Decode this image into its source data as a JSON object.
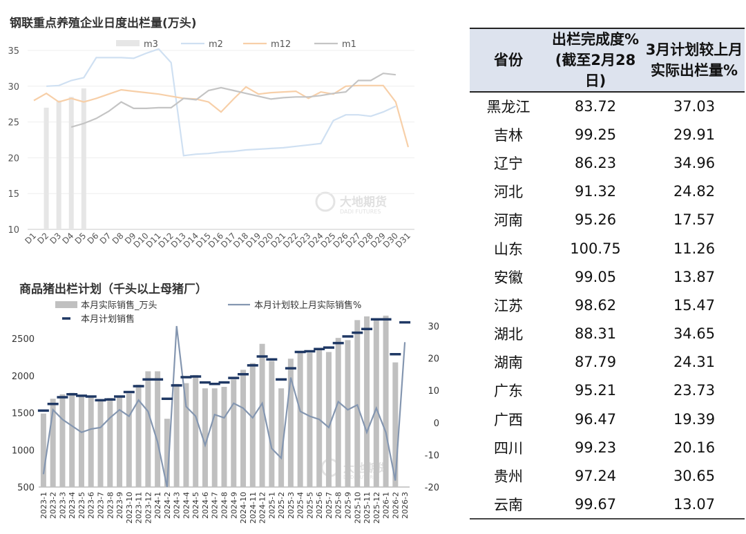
{
  "chart1": {
    "title": "钢联重点养殖企业日度出栏量(万头)",
    "watermark": {
      "name": "大地期货",
      "sub": "DADI FUTURES"
    },
    "chart_data": {
      "type": "line",
      "categories": [
        "D1",
        "D2",
        "D3",
        "D4",
        "D5",
        "D6",
        "D7",
        "D8",
        "D9",
        "D10",
        "D11",
        "D12",
        "D13",
        "D14",
        "D15",
        "D16",
        "D17",
        "D18",
        "D19",
        "D20",
        "D21",
        "D22",
        "D23",
        "D24",
        "D25",
        "D26",
        "D27",
        "D28",
        "D29",
        "D30",
        "D31"
      ],
      "ylim": [
        10,
        35
      ],
      "yticks": [
        10,
        15,
        20,
        25,
        30,
        35
      ],
      "legend_position": "top",
      "series": [
        {
          "name": "m3",
          "type": "bar",
          "color": "#e6e6e6",
          "values": [
            null,
            27.0,
            28.0,
            28.5,
            29.7,
            null,
            null,
            null,
            null,
            null,
            null,
            null,
            null,
            null,
            null,
            null,
            null,
            null,
            null,
            null,
            null,
            null,
            null,
            null,
            null,
            null,
            null,
            null,
            null,
            null,
            null
          ]
        },
        {
          "name": "m2",
          "type": "line",
          "color": "#cfe0f2",
          "values": [
            null,
            30.0,
            30.1,
            30.8,
            31.2,
            34.0,
            34.0,
            34.0,
            33.9,
            34.6,
            35.2,
            33.3,
            20.3,
            20.5,
            20.6,
            20.8,
            20.9,
            21.1,
            21.2,
            21.3,
            21.4,
            21.6,
            21.8,
            22.0,
            25.2,
            26.0,
            26.0,
            25.8,
            26.4,
            27.2,
            null
          ]
        },
        {
          "name": "m12",
          "type": "line",
          "color": "#f7cfa8",
          "values": [
            28.0,
            29.0,
            27.8,
            28.3,
            27.8,
            28.3,
            28.9,
            29.5,
            29.3,
            29.1,
            28.9,
            28.6,
            28.3,
            28.2,
            27.8,
            26.4,
            28.2,
            29.9,
            28.9,
            29.1,
            29.2,
            29.3,
            28.3,
            29.2,
            28.9,
            30.0,
            30.1,
            30.1,
            30.1,
            27.8,
            21.5
          ]
        },
        {
          "name": "m1",
          "type": "line",
          "color": "#c4c4c4",
          "values": [
            null,
            null,
            null,
            24.3,
            24.8,
            25.5,
            26.5,
            27.8,
            26.9,
            26.9,
            27.0,
            27.0,
            28.3,
            28.1,
            29.4,
            29.8,
            29.4,
            29.0,
            28.6,
            28.2,
            28.4,
            28.5,
            28.5,
            28.7,
            29.0,
            29.2,
            30.8,
            30.8,
            31.8,
            31.6,
            null
          ]
        }
      ]
    }
  },
  "chart2": {
    "title": "商品猪出栏计划（千头以上母猪厂）",
    "watermark": {
      "name": "大地期货",
      "sub": "DADI FUTURES"
    },
    "chart_data": {
      "type": "bar",
      "categories": [
        "2023-1",
        "2023-2",
        "2023-3",
        "2023-4",
        "2023-5",
        "2023-6",
        "2023-7",
        "2023-8",
        "2023-9",
        "2023-10",
        "2023-11",
        "2023-12",
        "2024-1",
        "2024-2",
        "2024-3",
        "2024-4",
        "2024-5",
        "2024-6",
        "2024-7",
        "2024-8",
        "2024-9",
        "2024-10",
        "2024-11",
        "2024-12",
        "2025-1",
        "2025-2",
        "2025-3",
        "2025-4",
        "2025-5",
        "2025-6",
        "2025-7",
        "2025-8",
        "2025-9",
        "2025-10",
        "2025-11",
        "2025-12",
        "2026-1",
        "2026-2",
        "2026-3"
      ],
      "ylim_left": [
        500,
        2800
      ],
      "yticks_left": [
        500,
        1000,
        1500,
        2000,
        2500
      ],
      "ylim_right": [
        -20,
        33
      ],
      "yticks_right": [
        -20,
        -10,
        0,
        10,
        20,
        30
      ],
      "legend_position": "top",
      "series": [
        {
          "name": "本月实际销售_万头",
          "type": "bar",
          "axis": "left",
          "color": "#c0c0c0",
          "values": [
            1490,
            1690,
            1750,
            1770,
            1730,
            1730,
            1680,
            1700,
            1720,
            1760,
            1880,
            2060,
            2060,
            1420,
            1890,
            1900,
            2010,
            1830,
            1830,
            1850,
            1950,
            2080,
            2170,
            2430,
            2200,
            1830,
            2230,
            2330,
            2310,
            2350,
            2320,
            2510,
            2480,
            2750,
            2800,
            2760,
            2810,
            2180,
            null
          ]
        },
        {
          "name": "本月计划较上月实际销售%",
          "type": "line",
          "axis": "right",
          "color": "#8496b0",
          "values": [
            -16,
            4,
            1,
            -1,
            -3,
            -2,
            -1.5,
            1.5,
            4,
            2,
            7,
            3.5,
            -6,
            -20,
            30,
            5,
            2,
            -7,
            2.5,
            1.5,
            6,
            4.5,
            1.5,
            6,
            -8,
            -11,
            14,
            3.5,
            2,
            1,
            -1.5,
            6.5,
            4,
            5.5,
            -3,
            4.5,
            -3,
            -18,
            25
          ]
        },
        {
          "name": "本月计划销售",
          "type": "marker",
          "axis": "left",
          "color": "#1f3864",
          "values": [
            1530,
            1620,
            1710,
            1750,
            1730,
            1720,
            1670,
            1680,
            1720,
            1780,
            1860,
            1950,
            1950,
            1690,
            1870,
            1980,
            1990,
            1910,
            1890,
            1910,
            1970,
            2020,
            2140,
            2260,
            2220,
            1950,
            2100,
            2320,
            2330,
            2360,
            2380,
            2440,
            2530,
            2580,
            2630,
            2760,
            2760,
            2290,
            2720
          ]
        }
      ]
    }
  },
  "table": {
    "headers": {
      "province": "省份",
      "completion_line1": "出栏完成度%",
      "completion_line2": "(截至2月28日)",
      "plan_line1": "3月计划较上月",
      "plan_line2": "实际出栏量%"
    },
    "rows": [
      {
        "province": "黑龙江",
        "completion": "83.72",
        "plan": "37.03"
      },
      {
        "province": "吉林",
        "completion": "99.25",
        "plan": "29.91"
      },
      {
        "province": "辽宁",
        "completion": "86.23",
        "plan": "34.96"
      },
      {
        "province": "河北",
        "completion": "91.32",
        "plan": "24.82"
      },
      {
        "province": "河南",
        "completion": "95.26",
        "plan": "17.57"
      },
      {
        "province": "山东",
        "completion": "100.75",
        "plan": "11.26"
      },
      {
        "province": "安徽",
        "completion": "99.05",
        "plan": "13.87"
      },
      {
        "province": "江苏",
        "completion": "98.62",
        "plan": "15.47"
      },
      {
        "province": "湖北",
        "completion": "88.31",
        "plan": "34.65"
      },
      {
        "province": "湖南",
        "completion": "87.79",
        "plan": "24.31"
      },
      {
        "province": "广东",
        "completion": "95.21",
        "plan": "23.73"
      },
      {
        "province": "广西",
        "completion": "96.47",
        "plan": "19.39"
      },
      {
        "province": "四川",
        "completion": "99.23",
        "plan": "20.16"
      },
      {
        "province": "贵州",
        "completion": "97.24",
        "plan": "30.65"
      },
      {
        "province": "云南",
        "completion": "99.67",
        "plan": "13.07"
      }
    ]
  }
}
